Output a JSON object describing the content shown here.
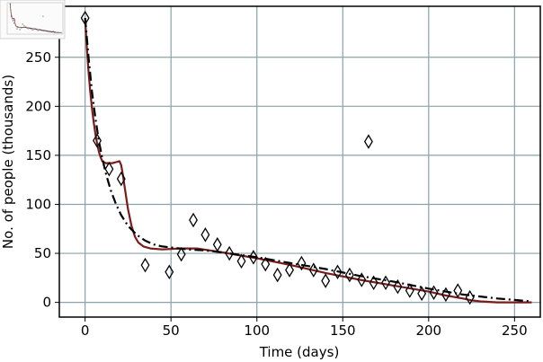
{
  "chart_data": {
    "type": "scatter",
    "xlabel": "Time (days)",
    "ylabel": "No. of people (thousands)",
    "xlim": [
      -15,
      265
    ],
    "ylim": [
      -15,
      302
    ],
    "x_ticks": [
      0,
      50,
      100,
      150,
      200,
      250
    ],
    "y_ticks": [
      0,
      50,
      100,
      150,
      200,
      250
    ],
    "grid": true,
    "colors": {
      "grid": "#8aa3a8",
      "observed_marker": "#000000",
      "model_fit": "#7a1c1c",
      "trend_fit": "#000000",
      "axes": "#000000"
    },
    "series": [
      {
        "type": "scatter",
        "marker": "diamond-open",
        "points": [
          [
            0,
            290
          ],
          [
            7,
            165
          ],
          [
            14,
            136
          ],
          [
            21,
            126
          ],
          [
            35,
            38
          ],
          [
            49,
            31
          ],
          [
            56,
            49
          ],
          [
            63,
            84
          ],
          [
            70,
            69
          ],
          [
            77,
            59
          ],
          [
            84,
            50
          ],
          [
            91,
            42
          ],
          [
            98,
            46
          ],
          [
            105,
            39
          ],
          [
            112,
            28
          ],
          [
            119,
            33
          ],
          [
            126,
            40
          ],
          [
            133,
            33
          ],
          [
            140,
            22
          ],
          [
            147,
            31
          ],
          [
            154,
            28
          ],
          [
            161,
            23
          ],
          [
            165,
            164
          ],
          [
            168,
            20
          ],
          [
            175,
            20
          ],
          [
            182,
            16
          ],
          [
            189,
            12
          ],
          [
            196,
            9
          ],
          [
            203,
            10
          ],
          [
            210,
            8
          ],
          [
            217,
            12
          ],
          [
            224,
            5
          ]
        ]
      },
      {
        "type": "line",
        "style": "solid",
        "points": [
          [
            0,
            290
          ],
          [
            1,
            260
          ],
          [
            2,
            235
          ],
          [
            3,
            215
          ],
          [
            4,
            198
          ],
          [
            5,
            184
          ],
          [
            6,
            172
          ],
          [
            7,
            162
          ],
          [
            8,
            154
          ],
          [
            9,
            148
          ],
          [
            10,
            144
          ],
          [
            12,
            142
          ],
          [
            14,
            142
          ],
          [
            16,
            142
          ],
          [
            18,
            143
          ],
          [
            20,
            144
          ],
          [
            21,
            140
          ],
          [
            22,
            130
          ],
          [
            23,
            118
          ],
          [
            25,
            95
          ],
          [
            27,
            78
          ],
          [
            29,
            67
          ],
          [
            31,
            61
          ],
          [
            34,
            57
          ],
          [
            38,
            55
          ],
          [
            45,
            54
          ],
          [
            55,
            55
          ],
          [
            65,
            55
          ],
          [
            80,
            51
          ],
          [
            100,
            45
          ],
          [
            120,
            38
          ],
          [
            140,
            30
          ],
          [
            160,
            23
          ],
          [
            180,
            17
          ],
          [
            200,
            11
          ],
          [
            210,
            7
          ],
          [
            220,
            4
          ],
          [
            225,
            2
          ],
          [
            230,
            1
          ],
          [
            240,
            0
          ],
          [
            260,
            0
          ]
        ]
      },
      {
        "type": "line",
        "style": "dashdot",
        "points": [
          [
            0,
            290
          ],
          [
            2,
            250
          ],
          [
            4,
            215
          ],
          [
            6,
            188
          ],
          [
            8,
            165
          ],
          [
            10,
            147
          ],
          [
            12,
            132
          ],
          [
            15,
            114
          ],
          [
            18,
            100
          ],
          [
            21,
            89
          ],
          [
            25,
            78
          ],
          [
            30,
            69
          ],
          [
            35,
            63
          ],
          [
            40,
            59
          ],
          [
            45,
            57
          ],
          [
            50,
            56
          ],
          [
            60,
            54
          ],
          [
            70,
            53
          ],
          [
            80,
            51
          ],
          [
            100,
            46
          ],
          [
            120,
            40
          ],
          [
            140,
            34
          ],
          [
            160,
            27
          ],
          [
            180,
            21
          ],
          [
            200,
            14
          ],
          [
            220,
            8
          ],
          [
            240,
            4
          ],
          [
            260,
            1
          ]
        ]
      }
    ]
  }
}
